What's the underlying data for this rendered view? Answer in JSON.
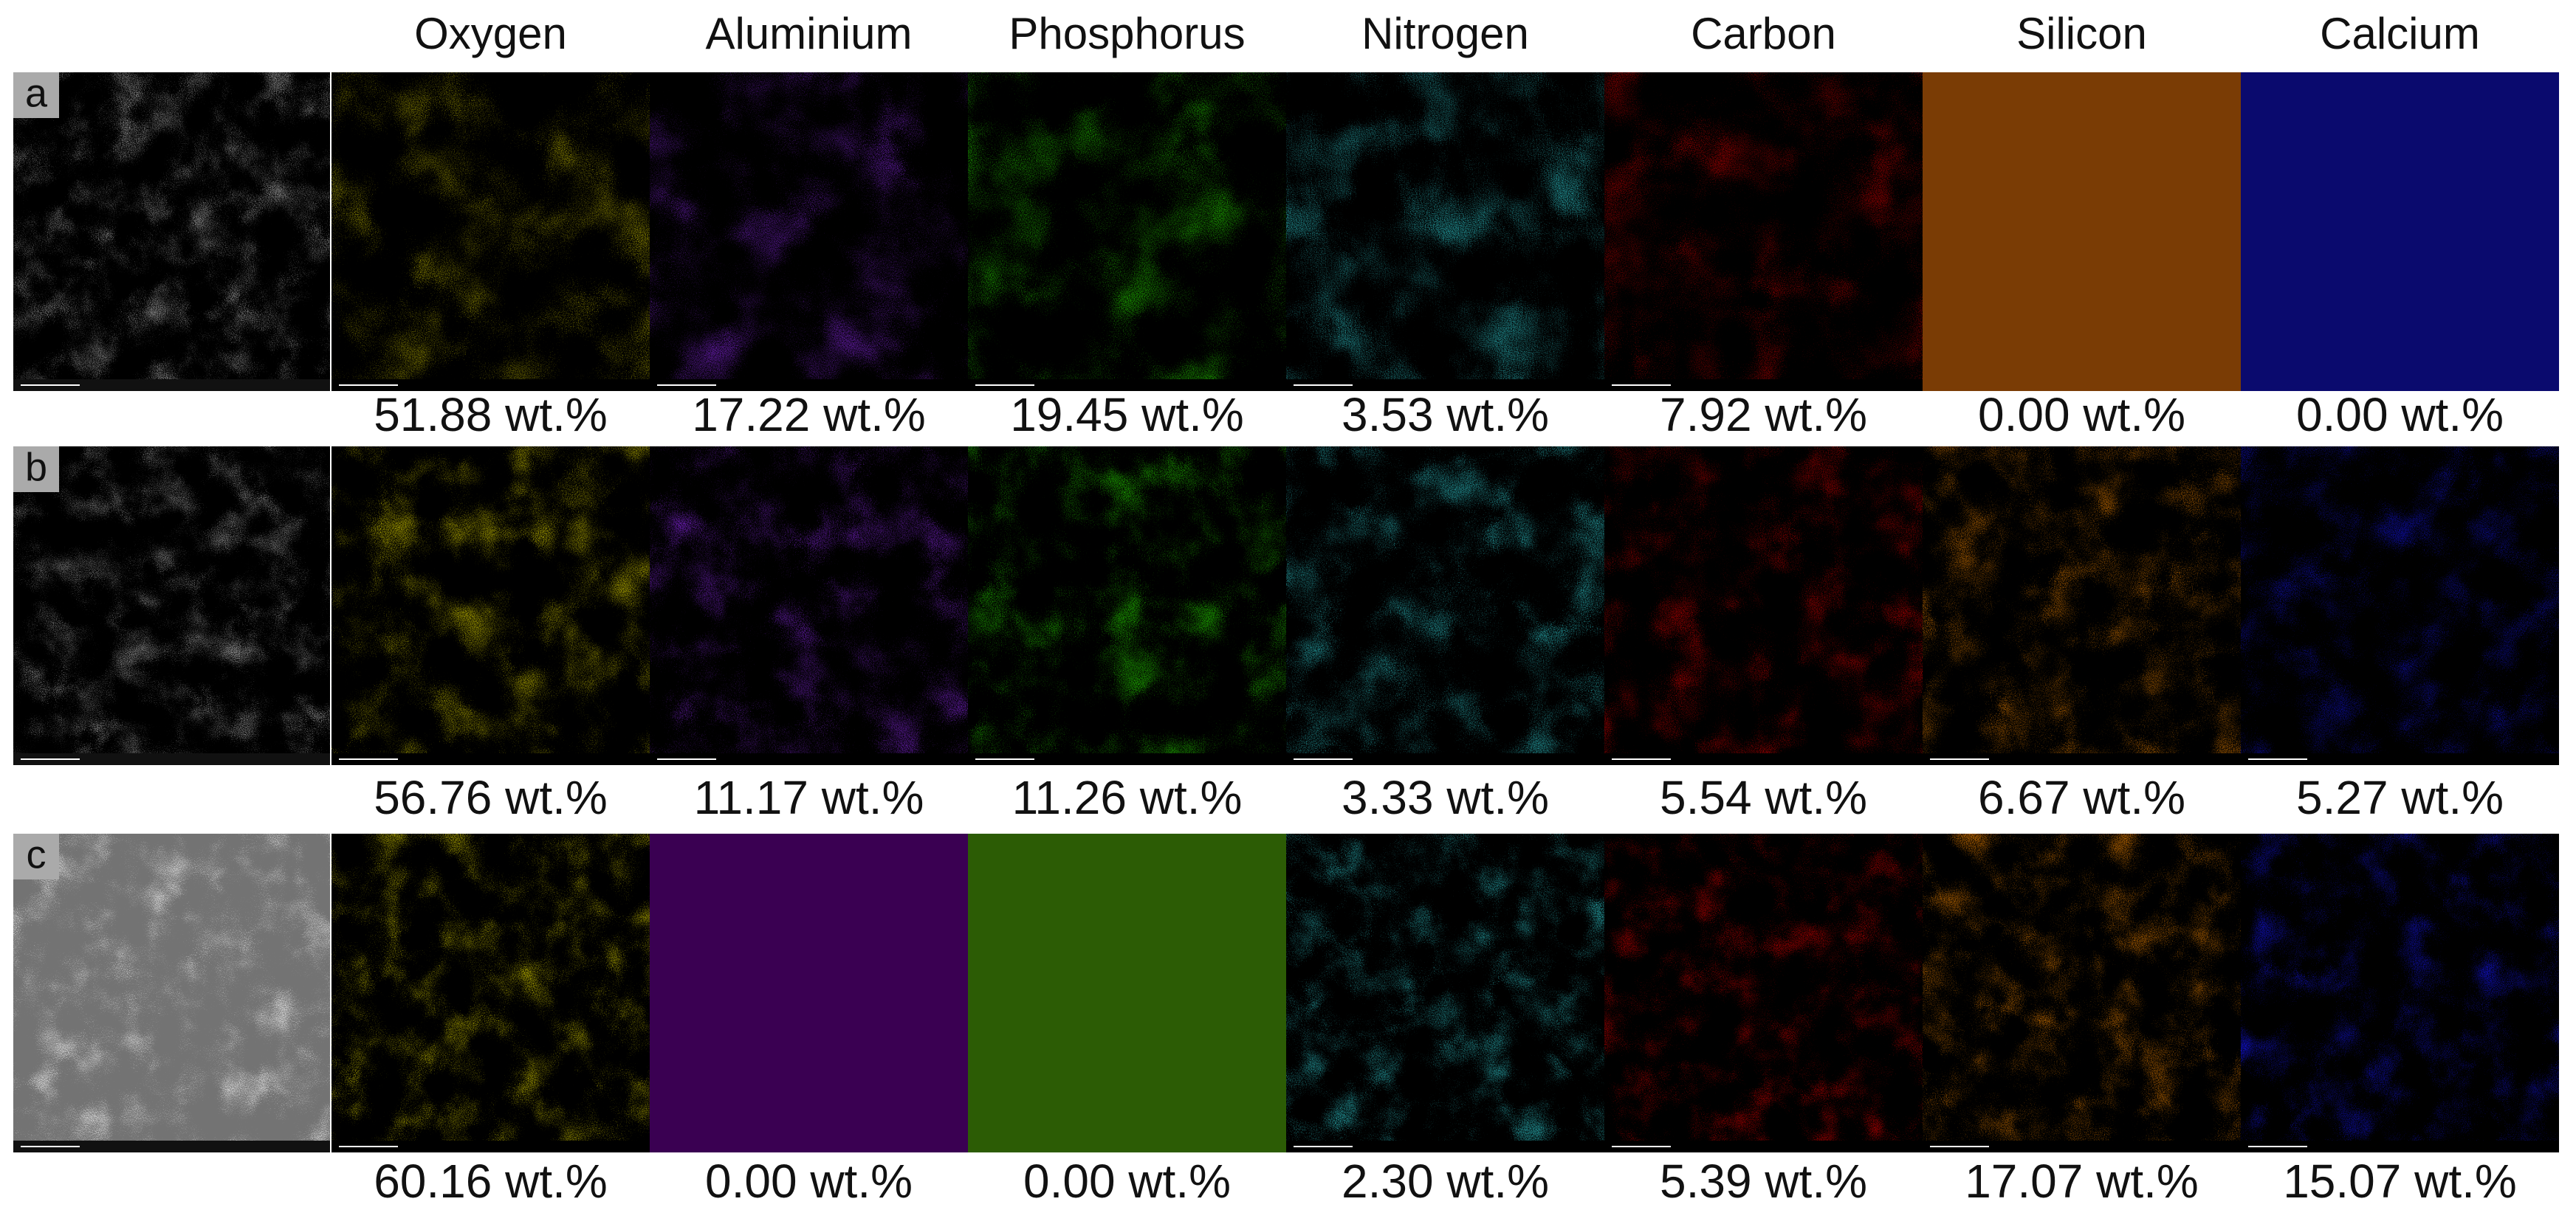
{
  "columns": [
    "Oxygen",
    "Aluminium",
    "Phosphorus",
    "Nitrogen",
    "Carbon",
    "Silicon",
    "Calcium"
  ],
  "rows": [
    {
      "label": "a",
      "values": [
        {
          "value": 51.88,
          "label": "51.88 wt.%"
        },
        {
          "value": 17.22,
          "label": "17.22 wt.%"
        },
        {
          "value": 19.45,
          "label": "19.45 wt.%"
        },
        {
          "value": 3.53,
          "label": "3.53 wt.%"
        },
        {
          "value": 7.92,
          "label": "7.92 wt.%"
        },
        {
          "value": 0,
          "label": "0.00 wt.%"
        },
        {
          "value": 0,
          "label": "0.00 wt.%"
        }
      ]
    },
    {
      "label": "b",
      "values": [
        {
          "value": 56.76,
          "label": "56.76 wt.%"
        },
        {
          "value": 11.17,
          "label": "11.17 wt.%"
        },
        {
          "value": 11.26,
          "label": "11.26 wt.%"
        },
        {
          "value": 3.33,
          "label": "3.33 wt.%"
        },
        {
          "value": 5.54,
          "label": "5.54 wt.%"
        },
        {
          "value": 6.67,
          "label": "6.67 wt.%"
        },
        {
          "value": 5.27,
          "label": "5.27 wt.%"
        }
      ]
    },
    {
      "label": "c",
      "values": [
        {
          "value": 60.16,
          "label": "60.16 wt.%"
        },
        {
          "value": 0,
          "label": "0.00 wt.%"
        },
        {
          "value": 0,
          "label": "0.00 wt.%"
        },
        {
          "value": 2.3,
          "label": "2.30 wt.%"
        },
        {
          "value": 5.39,
          "label": "5.39 wt.%"
        },
        {
          "value": 17.07,
          "label": "17.07 wt.%"
        },
        {
          "value": 15.07,
          "label": "15.07 wt.%"
        }
      ]
    }
  ]
}
